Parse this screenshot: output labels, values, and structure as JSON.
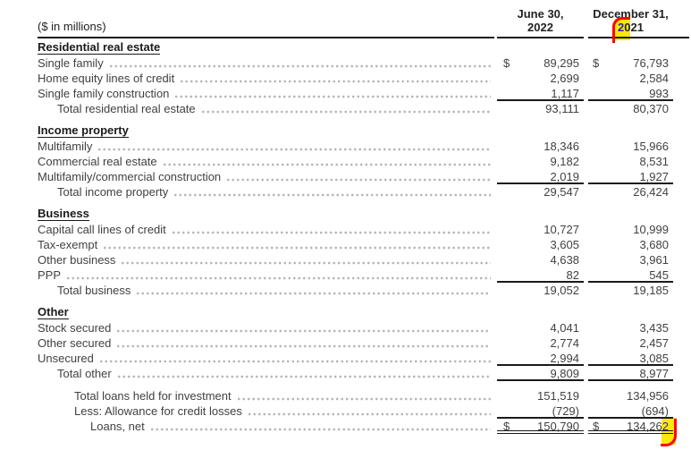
{
  "meta": {
    "currency_symbol": "$",
    "units_label": "($ in millions)"
  },
  "colors": {
    "highlight": "#ffe60b",
    "cursor": "#ff0000",
    "highlight_text": "#2222cc",
    "rule": "#1a1a1a",
    "body_text": "#414141"
  },
  "header": {
    "col1_line1": "June 30,",
    "col1_line2": "2022",
    "col2_line1": "December 31,",
    "col2_line2": "2021",
    "col2_line2_highlight_first_char": true
  },
  "sections": [
    {
      "title": "Residential real estate",
      "rows": [
        {
          "label": "Single family",
          "indent": 0,
          "d1": true,
          "d2": true,
          "v1": "89,295",
          "v2": "76,793",
          "rule": null
        },
        {
          "label": "Home equity lines of credit",
          "indent": 0,
          "v1": "2,699",
          "v2": "2,584",
          "rule": null
        },
        {
          "label": "Single family construction",
          "indent": 0,
          "v1": "1,117",
          "v2": "993",
          "rule": "under"
        },
        {
          "label": "Total residential real estate",
          "indent": 1,
          "v1": "93,111",
          "v2": "80,370",
          "rule": null
        }
      ]
    },
    {
      "title": "Income property",
      "rows": [
        {
          "label": "Multifamily",
          "indent": 0,
          "v1": "18,346",
          "v2": "15,966",
          "rule": null
        },
        {
          "label": "Commercial real estate",
          "indent": 0,
          "v1": "9,182",
          "v2": "8,531",
          "rule": null
        },
        {
          "label": "Multifamily/commercial construction",
          "indent": 0,
          "v1": "2,019",
          "v2": "1,927",
          "rule": "under"
        },
        {
          "label": "Total income property",
          "indent": 1,
          "v1": "29,547",
          "v2": "26,424",
          "rule": null
        }
      ]
    },
    {
      "title": "Business",
      "rows": [
        {
          "label": "Capital call lines of credit",
          "indent": 0,
          "v1": "10,727",
          "v2": "10,999",
          "rule": null
        },
        {
          "label": "Tax-exempt",
          "indent": 0,
          "v1": "3,605",
          "v2": "3,680",
          "rule": null
        },
        {
          "label": "Other business",
          "indent": 0,
          "v1": "4,638",
          "v2": "3,961",
          "rule": null
        },
        {
          "label": "PPP",
          "indent": 0,
          "v1": "82",
          "v2": "545",
          "rule": "under"
        },
        {
          "label": "Total business",
          "indent": 1,
          "v1": "19,052",
          "v2": "19,185",
          "rule": null
        }
      ]
    },
    {
      "title": "Other",
      "rows": [
        {
          "label": "Stock secured",
          "indent": 0,
          "v1": "4,041",
          "v2": "3,435",
          "rule": null
        },
        {
          "label": "Other secured",
          "indent": 0,
          "v1": "2,774",
          "v2": "2,457",
          "rule": null
        },
        {
          "label": "Unsecured",
          "indent": 0,
          "v1": "2,994",
          "v2": "3,085",
          "rule": "under"
        },
        {
          "label": "Total other",
          "indent": 1,
          "v1": "9,809",
          "v2": "8,977",
          "rule": "under"
        }
      ]
    }
  ],
  "footer_rows": [
    {
      "label": "Total loans held for investment",
      "indent": 2,
      "v1": "151,519",
      "v2": "134,956",
      "rule": null
    },
    {
      "label": "Less: Allowance for credit losses",
      "indent": 2,
      "v1": "(729)",
      "v2": "(694)",
      "rule": "under"
    },
    {
      "label": "Loans, net",
      "indent": 3,
      "d1": true,
      "d2": true,
      "v1": "150,790",
      "v2": "134,262",
      "rule": "double",
      "hl_last_v2": true
    }
  ]
}
